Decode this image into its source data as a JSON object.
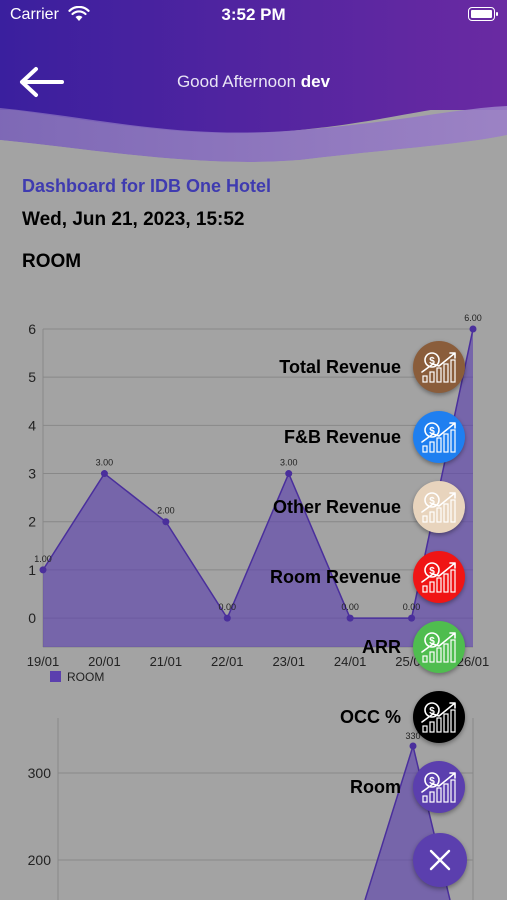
{
  "status_bar": {
    "carrier": "Carrier",
    "time": "3:52 PM"
  },
  "header": {
    "greeting_prefix": "Good Afternoon",
    "user_name": "dev"
  },
  "dashboard": {
    "title": "Dashboard for IDB One Hotel",
    "date": "Wed, Jun 21, 2023, 15:52",
    "section": "ROOM"
  },
  "chart_data": [
    {
      "type": "area",
      "categories": [
        "19/01",
        "20/01",
        "21/01",
        "22/01",
        "23/01",
        "24/01",
        "25/01",
        "26/01"
      ],
      "series": [
        {
          "name": "ROOM",
          "values": [
            1,
            3,
            2,
            0,
            3,
            0,
            0,
            6
          ],
          "labels": [
            "1.00",
            "3.00",
            "2.00",
            "0.00",
            "3.00",
            "0.00",
            "0.00",
            "6.00"
          ]
        }
      ],
      "y_ticks": [
        "0",
        "1",
        "2",
        "3",
        "4",
        "5",
        "6"
      ],
      "ylim": [
        -0.6,
        6
      ],
      "grid": true,
      "legend": "bottom-left",
      "color": "#5b3fae"
    },
    {
      "type": "area",
      "y_ticks": [
        "200",
        "300"
      ],
      "peak_label": "330",
      "color": "#5b3fae"
    }
  ],
  "fab_menu": {
    "items": [
      {
        "label": "Total Revenue",
        "color": "#8a5d3b",
        "icon": "revenue-chart-icon"
      },
      {
        "label": "F&B Revenue",
        "color": "#1f7ff0",
        "icon": "revenue-chart-icon"
      },
      {
        "label": "Other Revenue",
        "color": "#e8d4bd",
        "icon": "revenue-chart-icon"
      },
      {
        "label": "Room Revenue",
        "color": "#f01515",
        "icon": "revenue-chart-icon"
      },
      {
        "label": "ARR",
        "color": "#4fbd4f",
        "icon": "revenue-chart-icon"
      },
      {
        "label": "OCC %",
        "color": "#000000",
        "icon": "revenue-chart-icon"
      },
      {
        "label": "Room",
        "color": "#5b3fae",
        "icon": "revenue-chart-icon"
      }
    ],
    "close_icon": "close-icon"
  }
}
